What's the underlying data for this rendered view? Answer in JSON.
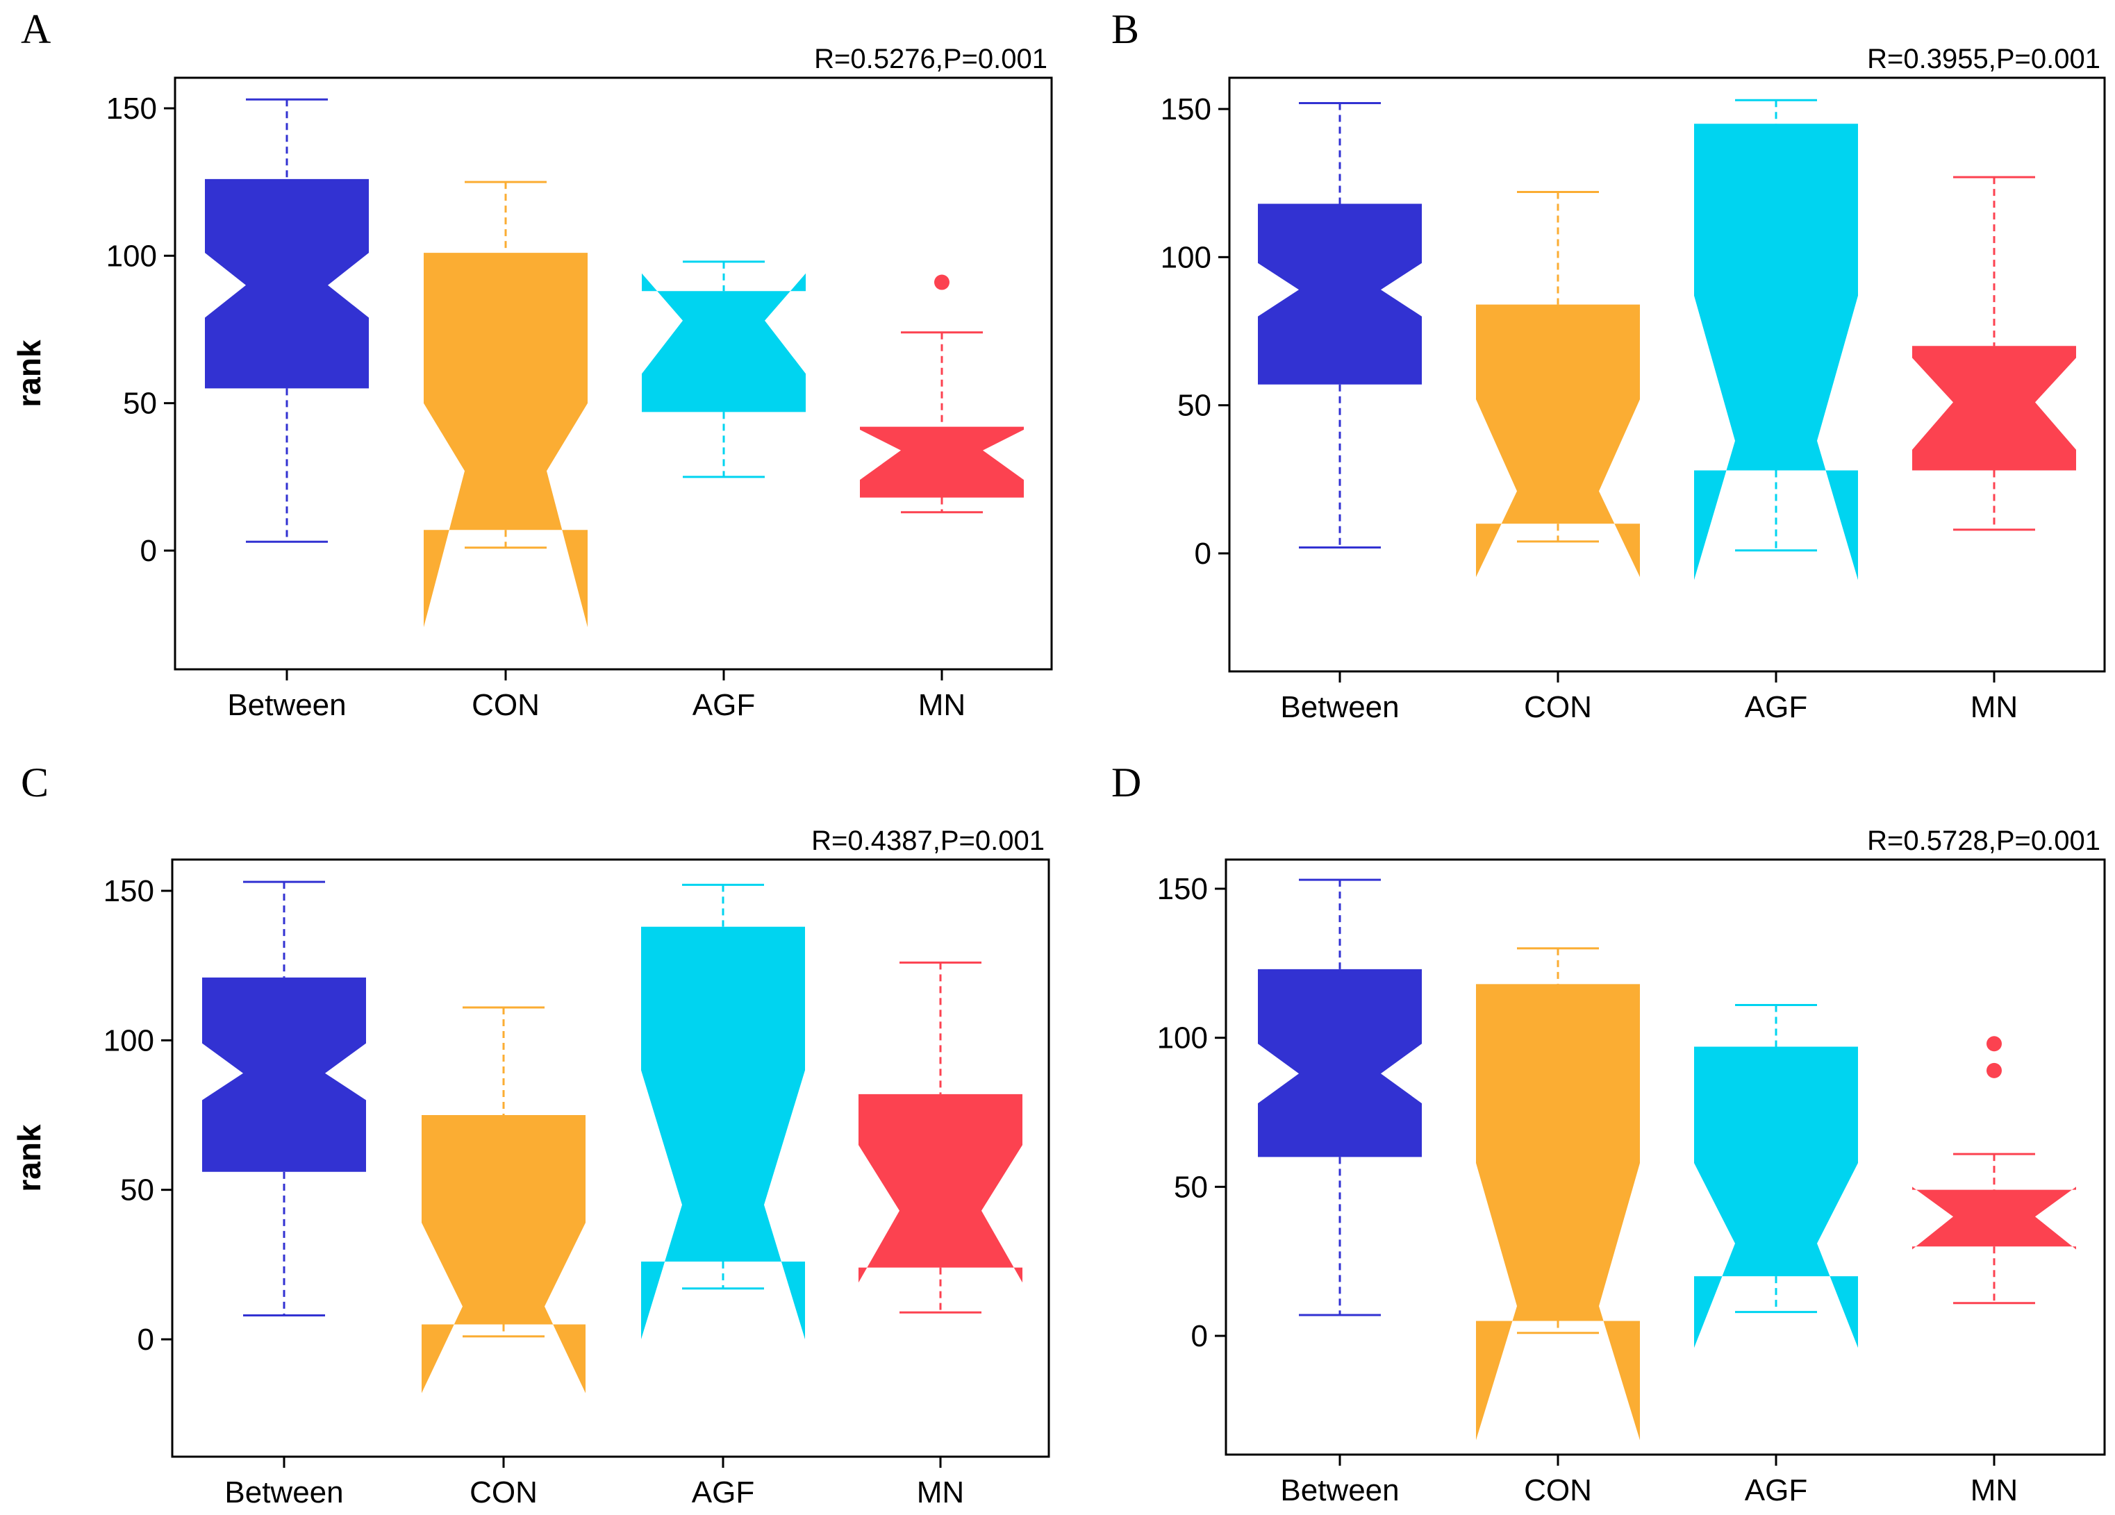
{
  "figure": {
    "colors": {
      "Between": "#3232D2",
      "CON": "#FBAD33",
      "AGF": "#00D4F0",
      "MN": "#FC4250"
    }
  },
  "chart_data": [
    {
      "type": "box",
      "panel": "A",
      "stat_label": "R=0.5276,P=0.001",
      "ylabel": "rank",
      "xlabel": "",
      "ylim": [
        -40,
        160
      ],
      "yticks": [
        0,
        50,
        100,
        150
      ],
      "categories": [
        "Between",
        "CON",
        "AGF",
        "MN"
      ],
      "boxes": [
        {
          "name": "Between",
          "whisker_low": 3,
          "q1": 55,
          "notch_low": 79,
          "median": 90,
          "notch_high": 101,
          "q3": 126,
          "whisker_high": 153,
          "outliers": []
        },
        {
          "name": "CON",
          "whisker_low": 1,
          "q1": 7,
          "notch_low": -26,
          "median": 27,
          "notch_high": 50,
          "q3": 101,
          "whisker_high": 125,
          "outliers": []
        },
        {
          "name": "AGF",
          "whisker_low": 25,
          "q1": 47,
          "notch_low": 60,
          "median": 78,
          "notch_high": 94,
          "q3": 88,
          "whisker_high": 98,
          "outliers": []
        },
        {
          "name": "MN",
          "whisker_low": 13,
          "q1": 18,
          "notch_low": 24,
          "median": 34,
          "notch_high": 41,
          "q3": 42,
          "whisker_high": 74,
          "outliers": [
            91
          ]
        }
      ]
    },
    {
      "type": "box",
      "panel": "B",
      "stat_label": "R=0.3955,P=0.001",
      "ylabel": "",
      "xlabel": "",
      "ylim": [
        -40,
        160
      ],
      "yticks": [
        0,
        50,
        100,
        150
      ],
      "categories": [
        "Between",
        "CON",
        "AGF",
        "MN"
      ],
      "boxes": [
        {
          "name": "Between",
          "whisker_low": 2,
          "q1": 57,
          "notch_low": 80,
          "median": 89,
          "notch_high": 98,
          "q3": 118,
          "whisker_high": 152,
          "outliers": []
        },
        {
          "name": "CON",
          "whisker_low": 4,
          "q1": 10,
          "notch_low": -8,
          "median": 21,
          "notch_high": 52,
          "q3": 84,
          "whisker_high": 122,
          "outliers": []
        },
        {
          "name": "AGF",
          "whisker_low": 1,
          "q1": 28,
          "notch_low": -9,
          "median": 38,
          "notch_high": 87,
          "q3": 145,
          "whisker_high": 153,
          "outliers": []
        },
        {
          "name": "MN",
          "whisker_low": 8,
          "q1": 28,
          "notch_low": 35,
          "median": 51,
          "notch_high": 66,
          "q3": 70,
          "whisker_high": 127,
          "outliers": []
        }
      ]
    },
    {
      "type": "box",
      "panel": "C",
      "stat_label": "R=0.4387,P=0.001",
      "ylabel": "rank",
      "xlabel": "",
      "ylim": [
        -40,
        160
      ],
      "yticks": [
        0,
        50,
        100,
        150
      ],
      "categories": [
        "Between",
        "CON",
        "AGF",
        "MN"
      ],
      "boxes": [
        {
          "name": "Between",
          "whisker_low": 8,
          "q1": 56,
          "notch_low": 80,
          "median": 89,
          "notch_high": 99,
          "q3": 121,
          "whisker_high": 153,
          "outliers": []
        },
        {
          "name": "CON",
          "whisker_low": 1,
          "q1": 5,
          "notch_low": -18,
          "median": 11,
          "notch_high": 39,
          "q3": 75,
          "whisker_high": 111,
          "outliers": []
        },
        {
          "name": "AGF",
          "whisker_low": 17,
          "q1": 26,
          "notch_low": 0,
          "median": 45,
          "notch_high": 90,
          "q3": 138,
          "whisker_high": 152,
          "outliers": []
        },
        {
          "name": "MN",
          "whisker_low": 9,
          "q1": 24,
          "notch_low": 19,
          "median": 43,
          "notch_high": 65,
          "q3": 82,
          "whisker_high": 126,
          "outliers": []
        }
      ]
    },
    {
      "type": "box",
      "panel": "D",
      "stat_label": "R=0.5728,P=0.001",
      "ylabel": "",
      "xlabel": "",
      "ylim": [
        -40,
        160
      ],
      "yticks": [
        0,
        50,
        100,
        150
      ],
      "categories": [
        "Between",
        "CON",
        "AGF",
        "MN"
      ],
      "boxes": [
        {
          "name": "Between",
          "whisker_low": 7,
          "q1": 60,
          "notch_low": 78,
          "median": 88,
          "notch_high": 98,
          "q3": 123,
          "whisker_high": 153,
          "outliers": []
        },
        {
          "name": "CON",
          "whisker_low": 1,
          "q1": 5,
          "notch_low": -35,
          "median": 10,
          "notch_high": 58,
          "q3": 118,
          "whisker_high": 130,
          "outliers": []
        },
        {
          "name": "AGF",
          "whisker_low": 8,
          "q1": 20,
          "notch_low": -4,
          "median": 31,
          "notch_high": 58,
          "q3": 97,
          "whisker_high": 111,
          "outliers": []
        },
        {
          "name": "MN",
          "whisker_low": 11,
          "q1": 30,
          "notch_low": 29,
          "median": 40,
          "notch_high": 50,
          "q3": 49,
          "whisker_high": 61,
          "outliers": [
            89,
            98
          ]
        }
      ]
    }
  ]
}
